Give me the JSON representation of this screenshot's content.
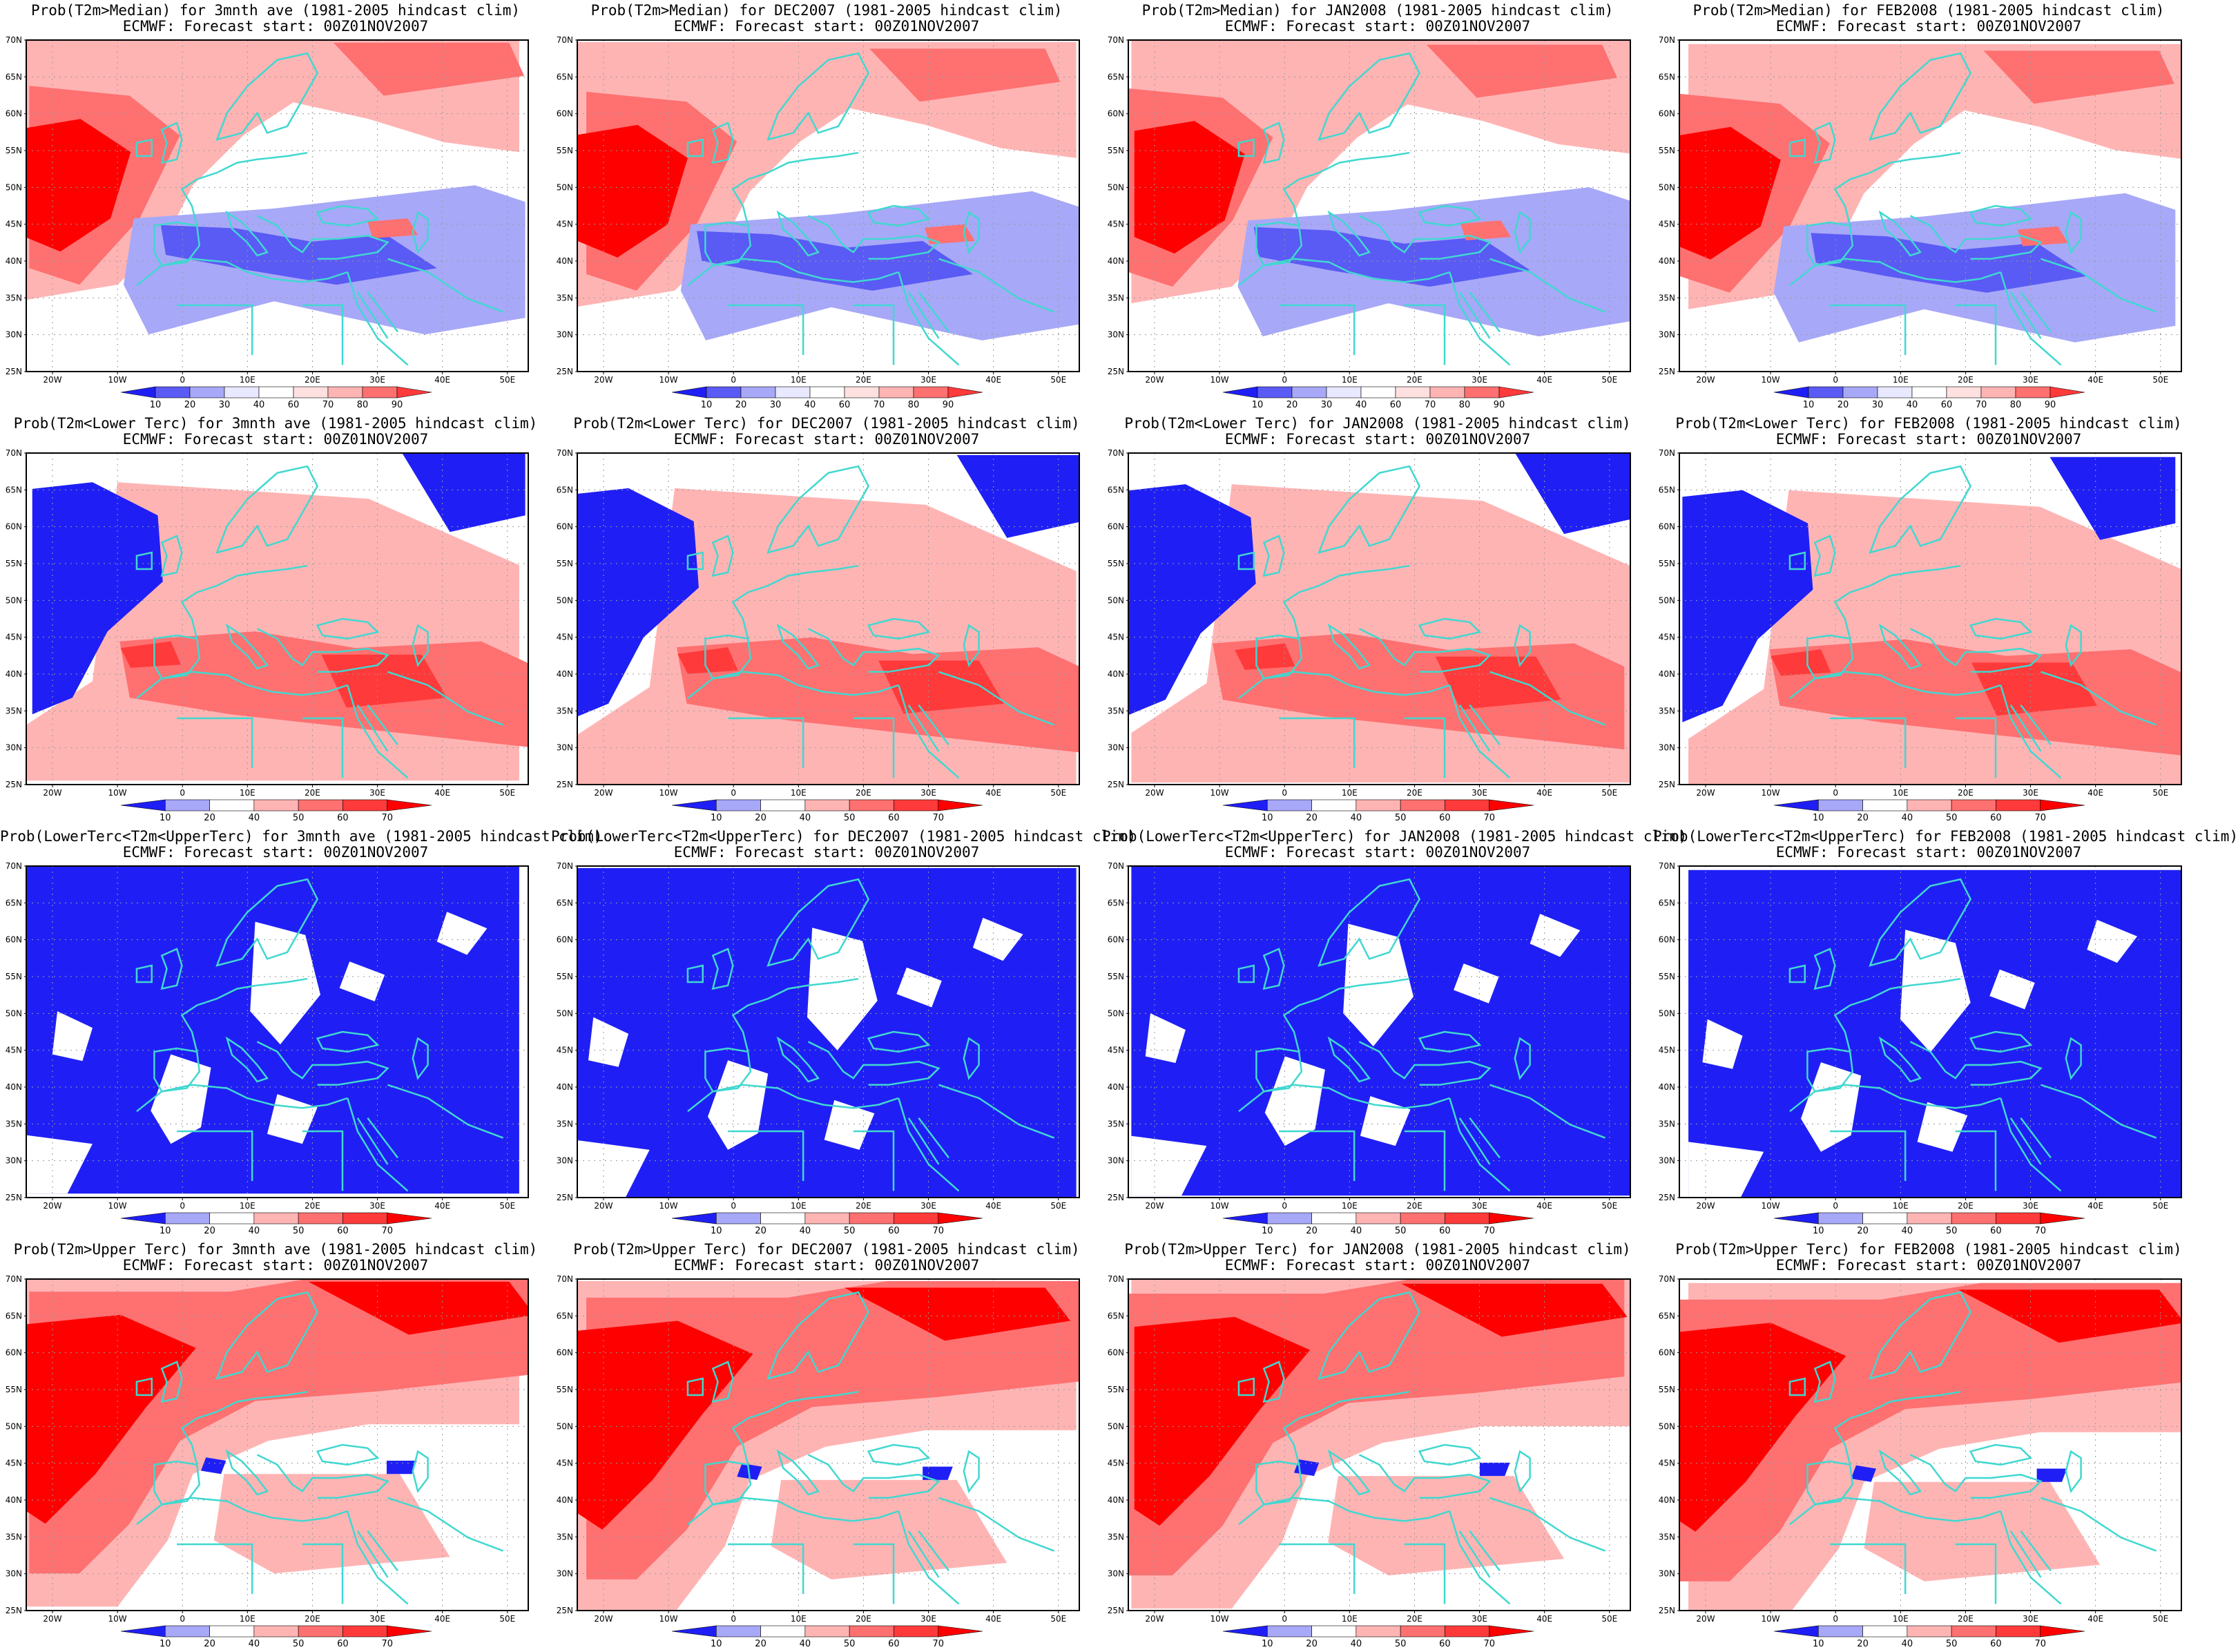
{
  "colors": {
    "blue_strong": "#1f1ff5",
    "blue_mid": "#5a5af5",
    "blue_light": "#a8a8f8",
    "red_light": "#ffb4b4",
    "red_mid": "#ff7070",
    "red_strong": "#ff3a3a",
    "red_dark": "#ff0000",
    "coast": "#40d8d0"
  },
  "axes": {
    "lat_labels": [
      "70N",
      "65N",
      "60N",
      "55N",
      "50N",
      "45N",
      "40N",
      "35N",
      "30N",
      "25N"
    ],
    "lon_labels": [
      "20W",
      "10W",
      "0",
      "10E",
      "20E",
      "30E",
      "40E",
      "50E"
    ]
  },
  "colorbars": {
    "median": [
      "10",
      "20",
      "30",
      "40",
      "60",
      "70",
      "80",
      "90"
    ],
    "tercile": [
      "10",
      "20",
      "40",
      "50",
      "60",
      "70"
    ]
  },
  "rows": [
    {
      "type": "median",
      "panels": [
        {
          "line1": "Prob(T2m>Median) for 3mnth ave (1981-2005 hindcast clim)",
          "line2": "ECMWF: Forecast start: 00Z01NOV2007"
        },
        {
          "line1": "Prob(T2m>Median) for DEC2007 (1981-2005 hindcast clim)",
          "line2": "ECMWF: Forecast start: 00Z01NOV2007"
        },
        {
          "line1": "Prob(T2m>Median) for JAN2008 (1981-2005 hindcast clim)",
          "line2": "ECMWF: Forecast start: 00Z01NOV2007"
        },
        {
          "line1": "Prob(T2m>Median) for FEB2008 (1981-2005 hindcast clim)",
          "line2": "ECMWF: Forecast start: 00Z01NOV2007"
        }
      ]
    },
    {
      "type": "lower",
      "panels": [
        {
          "line1": "Prob(T2m<Lower Terc) for 3mnth ave (1981-2005 hindcast clim)",
          "line2": "ECMWF: Forecast start: 00Z01NOV2007"
        },
        {
          "line1": "Prob(T2m<Lower Terc) for DEC2007 (1981-2005 hindcast clim)",
          "line2": "ECMWF: Forecast start: 00Z01NOV2007"
        },
        {
          "line1": "Prob(T2m<Lower Terc) for JAN2008 (1981-2005 hindcast clim)",
          "line2": "ECMWF: Forecast start: 00Z01NOV2007"
        },
        {
          "line1": "Prob(T2m<Lower Terc) for FEB2008 (1981-2005 hindcast clim)",
          "line2": "ECMWF: Forecast start: 00Z01NOV2007"
        }
      ]
    },
    {
      "type": "middle",
      "panels": [
        {
          "line1": "Prob(LowerTerc<T2m<UpperTerc) for 3mnth ave (1981-2005 hindcast clim)",
          "line2": "ECMWF: Forecast start: 00Z01NOV2007"
        },
        {
          "line1": "Prob(LowerTerc<T2m<UpperTerc) for DEC2007 (1981-2005 hindcast clim)",
          "line2": "ECMWF: Forecast start: 00Z01NOV2007"
        },
        {
          "line1": "Prob(LowerTerc<T2m<UpperTerc) for JAN2008 (1981-2005 hindcast clim)",
          "line2": "ECMWF: Forecast start: 00Z01NOV2007"
        },
        {
          "line1": "Prob(LowerTerc<T2m<UpperTerc) for FEB2008 (1981-2005 hindcast clim)",
          "line2": "ECMWF: Forecast start: 00Z01NOV2007"
        }
      ]
    },
    {
      "type": "upper",
      "panels": [
        {
          "line1": "Prob(T2m>Upper Terc) for 3mnth ave (1981-2005 hindcast clim)",
          "line2": "ECMWF: Forecast start: 00Z01NOV2007"
        },
        {
          "line1": "Prob(T2m>Upper Terc) for DEC2007 (1981-2005 hindcast clim)",
          "line2": "ECMWF: Forecast start: 00Z01NOV2007"
        },
        {
          "line1": "Prob(T2m>Upper Terc) for JAN2008 (1981-2005 hindcast clim)",
          "line2": "ECMWF: Forecast start: 00Z01NOV2007"
        },
        {
          "line1": "Prob(T2m>Upper Terc) for FEB2008 (1981-2005 hindcast clim)",
          "line2": "ECMWF: Forecast start: 00Z01NOV2007"
        }
      ]
    }
  ]
}
